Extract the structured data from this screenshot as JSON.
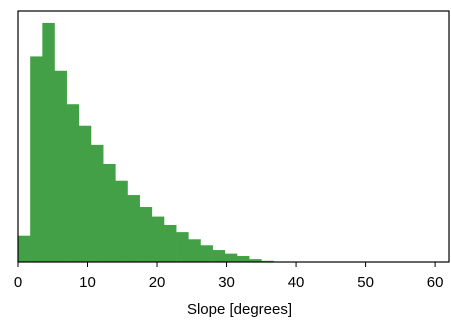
{
  "chart_data": {
    "type": "bar",
    "subtype": "histogram",
    "title": "",
    "xlabel": "Slope [degrees]",
    "ylabel": "",
    "xlim": [
      0,
      62
    ],
    "bin_width": 1.75,
    "x_ticks": [
      0,
      10,
      20,
      30,
      40,
      50,
      60
    ],
    "x_tick_labels": [
      "0",
      "10",
      "20",
      "30",
      "40",
      "50",
      "60"
    ],
    "y_ticks_shown": false,
    "grid": false,
    "color": "#43a047",
    "bins": [
      {
        "x0": 0.0,
        "x1": 1.75,
        "value": 11
      },
      {
        "x0": 1.75,
        "x1": 3.5,
        "value": 86
      },
      {
        "x0": 3.5,
        "x1": 5.25,
        "value": 100
      },
      {
        "x0": 5.25,
        "x1": 7.0,
        "value": 80
      },
      {
        "x0": 7.0,
        "x1": 8.75,
        "value": 66
      },
      {
        "x0": 8.75,
        "x1": 10.5,
        "value": 57
      },
      {
        "x0": 10.5,
        "x1": 12.25,
        "value": 49
      },
      {
        "x0": 12.25,
        "x1": 14.0,
        "value": 41
      },
      {
        "x0": 14.0,
        "x1": 15.75,
        "value": 34
      },
      {
        "x0": 15.75,
        "x1": 17.5,
        "value": 28
      },
      {
        "x0": 17.5,
        "x1": 19.25,
        "value": 23
      },
      {
        "x0": 19.25,
        "x1": 21.0,
        "value": 19
      },
      {
        "x0": 21.0,
        "x1": 22.75,
        "value": 15.5
      },
      {
        "x0": 22.75,
        "x1": 24.5,
        "value": 12.5
      },
      {
        "x0": 24.5,
        "x1": 26.25,
        "value": 9.5
      },
      {
        "x0": 26.25,
        "x1": 28.0,
        "value": 7
      },
      {
        "x0": 28.0,
        "x1": 29.75,
        "value": 5
      },
      {
        "x0": 29.75,
        "x1": 31.5,
        "value": 3.5
      },
      {
        "x0": 31.5,
        "x1": 33.25,
        "value": 2.5
      },
      {
        "x0": 33.25,
        "x1": 35.0,
        "value": 1.2
      },
      {
        "x0": 35.0,
        "x1": 36.75,
        "value": 0.5
      },
      {
        "x0": 36.75,
        "x1": 38.5,
        "value": 0.2
      },
      {
        "x0": 38.5,
        "x1": 40.25,
        "value": 0.1
      }
    ],
    "ylim": [
      0,
      105
    ]
  }
}
